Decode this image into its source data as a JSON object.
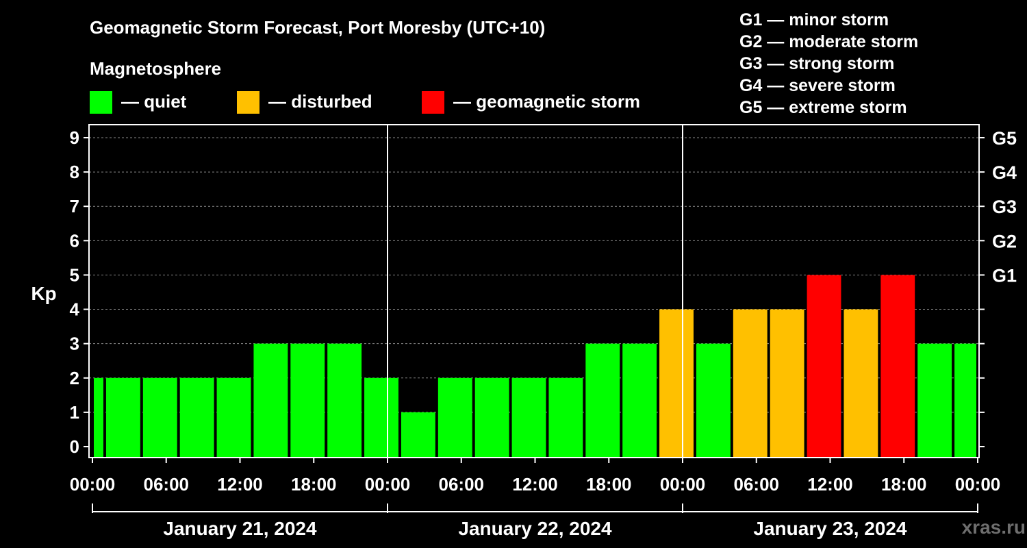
{
  "chart_data": {
    "type": "bar",
    "title": "Geomagnetic Storm Forecast, Port Moresby (UTC+10)",
    "ylabel": "Kp",
    "ylim": [
      0,
      9
    ],
    "y_ticks": [
      0,
      1,
      2,
      3,
      4,
      5,
      6,
      7,
      8,
      9
    ],
    "right_axis_labels": [
      {
        "kp": 5,
        "label": "G1"
      },
      {
        "kp": 6,
        "label": "G2"
      },
      {
        "kp": 7,
        "label": "G3"
      },
      {
        "kp": 8,
        "label": "G4"
      },
      {
        "kp": 9,
        "label": "G5"
      }
    ],
    "x_range_hours": [
      0,
      72
    ],
    "x_tick_hours": [
      0,
      6,
      12,
      18,
      24,
      30,
      36,
      42,
      48,
      54,
      60,
      66,
      72
    ],
    "x_tick_labels": [
      "00:00",
      "06:00",
      "12:00",
      "18:00",
      "00:00",
      "06:00",
      "12:00",
      "18:00",
      "00:00",
      "06:00",
      "12:00",
      "18:00",
      "00:00"
    ],
    "day_boundaries_hours": [
      24,
      48
    ],
    "days": [
      {
        "label": "January 21, 2024",
        "start_hour": 0,
        "end_hour": 24
      },
      {
        "label": "January 22, 2024",
        "start_hour": 24,
        "end_hour": 48
      },
      {
        "label": "January 23, 2024",
        "start_hour": 48,
        "end_hour": 72
      }
    ],
    "bars": [
      {
        "start_hour": 0,
        "end_hour": 1,
        "kp": 2,
        "level": "quiet"
      },
      {
        "start_hour": 1,
        "end_hour": 4,
        "kp": 2,
        "level": "quiet"
      },
      {
        "start_hour": 4,
        "end_hour": 7,
        "kp": 2,
        "level": "quiet"
      },
      {
        "start_hour": 7,
        "end_hour": 10,
        "kp": 2,
        "level": "quiet"
      },
      {
        "start_hour": 10,
        "end_hour": 13,
        "kp": 2,
        "level": "quiet"
      },
      {
        "start_hour": 13,
        "end_hour": 16,
        "kp": 3,
        "level": "quiet"
      },
      {
        "start_hour": 16,
        "end_hour": 19,
        "kp": 3,
        "level": "quiet"
      },
      {
        "start_hour": 19,
        "end_hour": 22,
        "kp": 3,
        "level": "quiet"
      },
      {
        "start_hour": 22,
        "end_hour": 25,
        "kp": 2,
        "level": "quiet"
      },
      {
        "start_hour": 25,
        "end_hour": 28,
        "kp": 1,
        "level": "quiet"
      },
      {
        "start_hour": 28,
        "end_hour": 31,
        "kp": 2,
        "level": "quiet"
      },
      {
        "start_hour": 31,
        "end_hour": 34,
        "kp": 2,
        "level": "quiet"
      },
      {
        "start_hour": 34,
        "end_hour": 37,
        "kp": 2,
        "level": "quiet"
      },
      {
        "start_hour": 37,
        "end_hour": 40,
        "kp": 2,
        "level": "quiet"
      },
      {
        "start_hour": 40,
        "end_hour": 43,
        "kp": 3,
        "level": "quiet"
      },
      {
        "start_hour": 43,
        "end_hour": 46,
        "kp": 3,
        "level": "quiet"
      },
      {
        "start_hour": 46,
        "end_hour": 49,
        "kp": 4,
        "level": "disturbed"
      },
      {
        "start_hour": 49,
        "end_hour": 52,
        "kp": 3,
        "level": "quiet"
      },
      {
        "start_hour": 52,
        "end_hour": 55,
        "kp": 4,
        "level": "disturbed"
      },
      {
        "start_hour": 55,
        "end_hour": 58,
        "kp": 4,
        "level": "disturbed"
      },
      {
        "start_hour": 58,
        "end_hour": 61,
        "kp": 5,
        "level": "storm"
      },
      {
        "start_hour": 61,
        "end_hour": 64,
        "kp": 4,
        "level": "disturbed"
      },
      {
        "start_hour": 64,
        "end_hour": 67,
        "kp": 5,
        "level": "storm"
      },
      {
        "start_hour": 67,
        "end_hour": 70,
        "kp": 3,
        "level": "quiet"
      },
      {
        "start_hour": 70,
        "end_hour": 72,
        "kp": 3,
        "level": "quiet"
      }
    ],
    "legend": {
      "heading": "Magnetosphere",
      "items": [
        {
          "key": "quiet",
          "label": "— quiet",
          "color": "#00ff00"
        },
        {
          "key": "disturbed",
          "label": "— disturbed",
          "color": "#ffc000"
        },
        {
          "key": "storm",
          "label": "— geomagnetic storm",
          "color": "#ff0000"
        }
      ]
    },
    "g_scale": [
      "G1 — minor storm",
      "G2 — moderate storm",
      "G3 — strong storm",
      "G4 — severe storm",
      "G5 — extreme storm"
    ],
    "watermark": "xras.ru",
    "grid": true
  }
}
